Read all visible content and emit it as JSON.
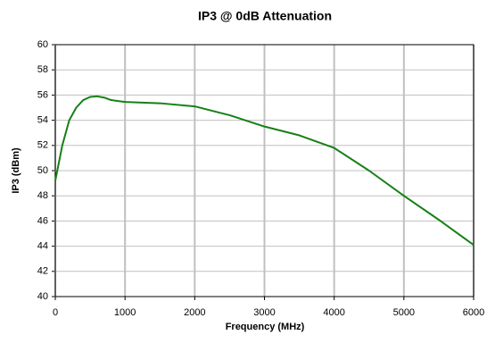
{
  "chart_data": {
    "type": "line",
    "title": "IP3 @ 0dB Attenuation",
    "x_label": "Frequency (MHz)",
    "y_label": "IP3 (dBm)",
    "x": [
      0,
      100,
      200,
      300,
      400,
      500,
      600,
      700,
      800,
      1000,
      1500,
      2000,
      2500,
      3000,
      3500,
      4000,
      4500,
      5000,
      5500,
      6000
    ],
    "series": [
      {
        "name": "IP3",
        "color": "#168016",
        "values": [
          49.2,
          52.0,
          54.0,
          55.0,
          55.6,
          55.85,
          55.9,
          55.8,
          55.6,
          55.45,
          55.35,
          55.1,
          54.4,
          53.5,
          52.8,
          51.8,
          50.0,
          48.0,
          46.1,
          44.1
        ]
      }
    ],
    "xlim": [
      0,
      6000
    ],
    "xticks": [
      0,
      1000,
      2000,
      3000,
      4000,
      5000,
      6000
    ],
    "ylim": [
      40,
      60
    ],
    "yticks": [
      40,
      42,
      44,
      46,
      48,
      50,
      52,
      54,
      56,
      58,
      60
    ],
    "grid": true
  }
}
